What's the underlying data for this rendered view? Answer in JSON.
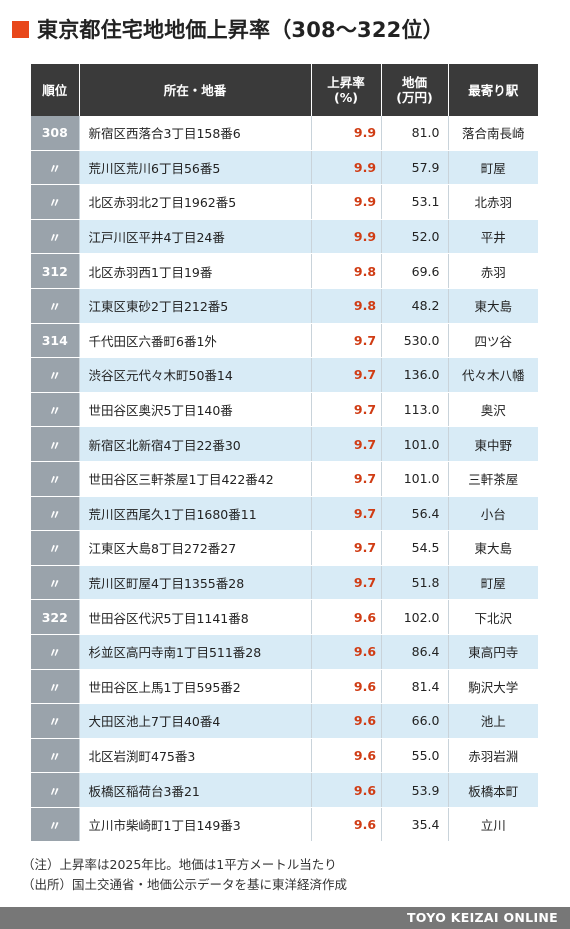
{
  "title": "東京都住宅地地価上昇率（308〜322位）",
  "accent_color": "#e8471a",
  "rise_color": "#d03c14",
  "table": {
    "headers": {
      "rank": "順位",
      "address": "所在・地番",
      "rise_line1": "上昇率",
      "rise_line2": "(%)",
      "price_line1": "地価",
      "price_line2": "(万円)",
      "station": "最寄り駅"
    },
    "rows": [
      {
        "rank": "308",
        "address": "新宿区西落合3丁目158番6",
        "rise": "9.9",
        "price": "81.0",
        "station": "落合南長崎"
      },
      {
        "rank": "〃",
        "address": "荒川区荒川6丁目56番5",
        "rise": "9.9",
        "price": "57.9",
        "station": "町屋"
      },
      {
        "rank": "〃",
        "address": "北区赤羽北2丁目1962番5",
        "rise": "9.9",
        "price": "53.1",
        "station": "北赤羽"
      },
      {
        "rank": "〃",
        "address": "江戸川区平井4丁目24番",
        "rise": "9.9",
        "price": "52.0",
        "station": "平井"
      },
      {
        "rank": "312",
        "address": "北区赤羽西1丁目19番",
        "rise": "9.8",
        "price": "69.6",
        "station": "赤羽"
      },
      {
        "rank": "〃",
        "address": "江東区東砂2丁目212番5",
        "rise": "9.8",
        "price": "48.2",
        "station": "東大島"
      },
      {
        "rank": "314",
        "address": "千代田区六番町6番1外",
        "rise": "9.7",
        "price": "530.0",
        "station": "四ツ谷"
      },
      {
        "rank": "〃",
        "address": "渋谷区元代々木町50番14",
        "rise": "9.7",
        "price": "136.0",
        "station": "代々木八幡"
      },
      {
        "rank": "〃",
        "address": "世田谷区奥沢5丁目140番",
        "rise": "9.7",
        "price": "113.0",
        "station": "奥沢"
      },
      {
        "rank": "〃",
        "address": "新宿区北新宿4丁目22番30",
        "rise": "9.7",
        "price": "101.0",
        "station": "東中野"
      },
      {
        "rank": "〃",
        "address": "世田谷区三軒茶屋1丁目422番42",
        "rise": "9.7",
        "price": "101.0",
        "station": "三軒茶屋"
      },
      {
        "rank": "〃",
        "address": "荒川区西尾久1丁目1680番11",
        "rise": "9.7",
        "price": "56.4",
        "station": "小台"
      },
      {
        "rank": "〃",
        "address": "江東区大島8丁目272番27",
        "rise": "9.7",
        "price": "54.5",
        "station": "東大島"
      },
      {
        "rank": "〃",
        "address": "荒川区町屋4丁目1355番28",
        "rise": "9.7",
        "price": "51.8",
        "station": "町屋"
      },
      {
        "rank": "322",
        "address": "世田谷区代沢5丁目1141番8",
        "rise": "9.6",
        "price": "102.0",
        "station": "下北沢"
      },
      {
        "rank": "〃",
        "address": "杉並区高円寺南1丁目511番28",
        "rise": "9.6",
        "price": "86.4",
        "station": "東高円寺"
      },
      {
        "rank": "〃",
        "address": "世田谷区上馬1丁目595番2",
        "rise": "9.6",
        "price": "81.4",
        "station": "駒沢大学"
      },
      {
        "rank": "〃",
        "address": "大田区池上7丁目40番4",
        "rise": "9.6",
        "price": "66.0",
        "station": "池上"
      },
      {
        "rank": "〃",
        "address": "北区岩渕町475番3",
        "rise": "9.6",
        "price": "55.0",
        "station": "赤羽岩淵"
      },
      {
        "rank": "〃",
        "address": "板橋区稲荷台3番21",
        "rise": "9.6",
        "price": "53.9",
        "station": "板橋本町"
      },
      {
        "rank": "〃",
        "address": "立川市柴崎町1丁目149番3",
        "rise": "9.6",
        "price": "35.4",
        "station": "立川"
      }
    ]
  },
  "notes": {
    "note": "（注）上昇率は2025年比。地価は1平方メートル当たり",
    "source": "（出所）国土交通省・地価公示データを基に東洋経済作成"
  },
  "footer": "TOYO KEIZAI ONLINE"
}
